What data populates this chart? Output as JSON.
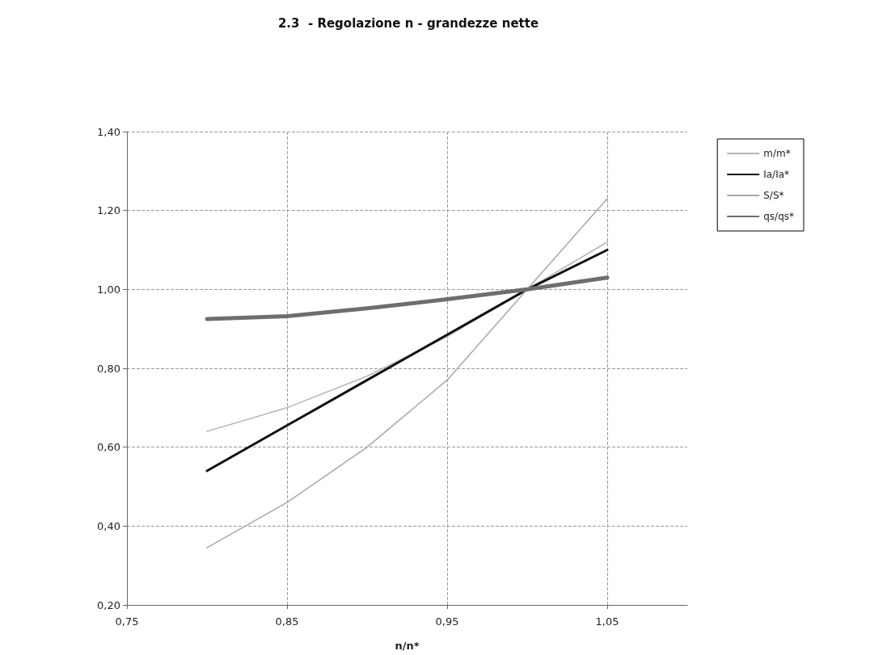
{
  "chart_data": {
    "type": "line",
    "title": "2.3  - Regolazione n - grandezze nette",
    "xlabel": "n/n*",
    "x": [
      0.8,
      0.85,
      0.9,
      0.95,
      1.0,
      1.05
    ],
    "series": [
      {
        "name": "m/m*",
        "color": "#b4b4b4",
        "values": [
          0.64,
          0.7,
          0.78,
          0.88,
          1.0,
          1.12
        ]
      },
      {
        "name": "Ia/Ia*",
        "color": "#111111",
        "values": [
          0.54,
          0.655,
          0.77,
          0.885,
          1.0,
          1.1
        ]
      },
      {
        "name": "S/S*",
        "color": "#a8a8a8",
        "values": [
          0.345,
          0.46,
          0.6,
          0.77,
          1.0,
          1.23
        ]
      },
      {
        "name": "qs/qs*",
        "color": "#6e6e6e",
        "values": [
          0.925,
          0.932,
          0.952,
          0.975,
          1.0,
          1.03
        ]
      }
    ],
    "xlim": [
      0.75,
      1.1
    ],
    "xticks": [
      {
        "value": 0.75,
        "label": "0,75"
      },
      {
        "value": 0.85,
        "label": "0,85"
      },
      {
        "value": 0.95,
        "label": "0,95"
      },
      {
        "value": 1.05,
        "label": "1,05"
      }
    ],
    "ylim": [
      0.2,
      1.4
    ],
    "yticks": [
      {
        "value": 0.2,
        "label": "0,20"
      },
      {
        "value": 0.4,
        "label": "0,40"
      },
      {
        "value": 0.6,
        "label": "0,60"
      },
      {
        "value": 0.8,
        "label": "0,80"
      },
      {
        "value": 1.0,
        "label": "1,00"
      },
      {
        "value": 1.2,
        "label": "1,20"
      },
      {
        "value": 1.4,
        "label": "1,40"
      }
    ],
    "grid": true,
    "legend": "right",
    "marker": "none",
    "line_style": "solid"
  }
}
